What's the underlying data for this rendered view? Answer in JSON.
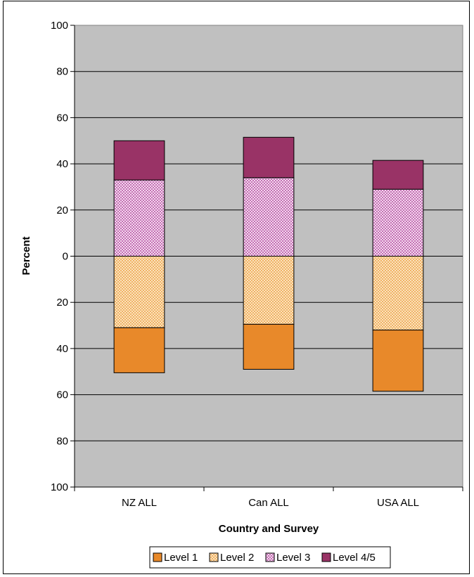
{
  "chart_data": {
    "type": "bar",
    "stacked": "diverging",
    "xlabel": "Country and Survey",
    "ylabel": "Percent",
    "categories": [
      "NZ ALL",
      "Can ALL",
      "USA ALL"
    ],
    "ylim": [
      -100,
      100
    ],
    "yticks": [
      {
        "value": 100,
        "label": "100"
      },
      {
        "value": 80,
        "label": "80"
      },
      {
        "value": 60,
        "label": "60"
      },
      {
        "value": 40,
        "label": "40"
      },
      {
        "value": 20,
        "label": "20"
      },
      {
        "value": 0,
        "label": "0"
      },
      {
        "value": -20,
        "label": "20"
      },
      {
        "value": -40,
        "label": "40"
      },
      {
        "value": -60,
        "label": "60"
      },
      {
        "value": -80,
        "label": "80"
      },
      {
        "value": -100,
        "label": "100"
      }
    ],
    "series": [
      {
        "name": "Level 1",
        "direction": "down",
        "color": "#e8892a",
        "pattern": "solid",
        "values": [
          19.5,
          19.5,
          26.5
        ]
      },
      {
        "name": "Level 2",
        "direction": "down",
        "color": "#f6ca8c",
        "pattern": "checker",
        "values": [
          31,
          29.5,
          32
        ]
      },
      {
        "name": "Level 3",
        "direction": "up",
        "color": "#dc9cd2",
        "pattern": "checker",
        "values": [
          33,
          34,
          29
        ]
      },
      {
        "name": "Level 4/5",
        "direction": "up",
        "color": "#993366",
        "pattern": "solid",
        "values": [
          17,
          17.5,
          12.5
        ]
      }
    ],
    "grid": true,
    "plot_background": "#c0c0c0",
    "legend_position": "bottom"
  }
}
